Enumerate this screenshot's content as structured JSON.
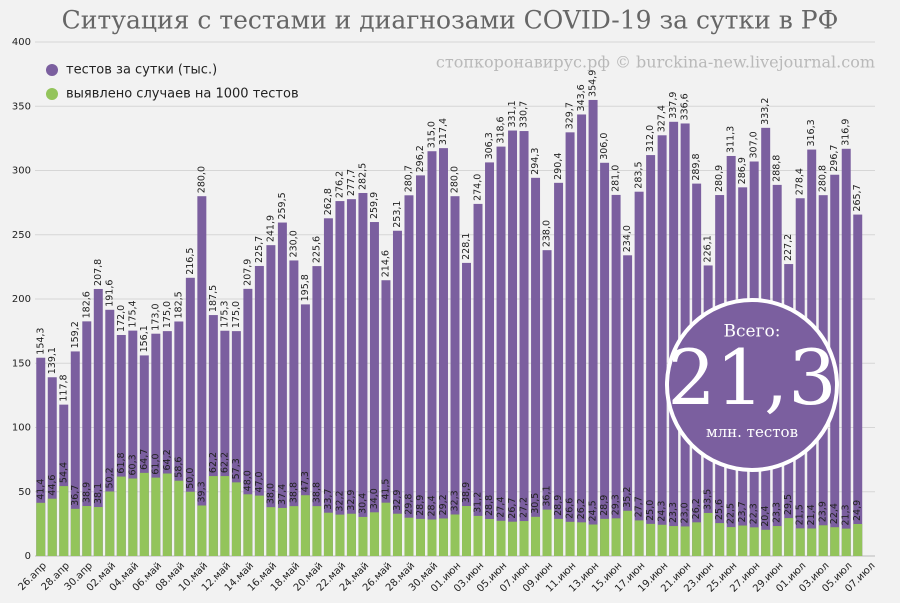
{
  "chart_data": {
    "type": "bar",
    "title": "Ситуация с тестами и диагнозами COVID-19 за сутки в РФ",
    "subtitle": "стопкоронавирус.рф © burckina-new.livejournal.com",
    "annotations": [
      "Всего:",
      "21,3",
      "млн. тестов"
    ],
    "categories": [
      "26.апр",
      null,
      "28.апр",
      null,
      "30.апр",
      null,
      "02.май",
      null,
      "04.май",
      null,
      "06.май",
      null,
      "08.май",
      null,
      "10.май",
      null,
      "12.май",
      null,
      "14.май",
      null,
      "16.май",
      null,
      "18.май",
      null,
      "20.май",
      null,
      "22.май",
      null,
      "24.май",
      null,
      "26.май",
      null,
      "28.май",
      null,
      "30.май",
      null,
      "01.июн",
      null,
      "03.июн",
      null,
      "05.июн",
      null,
      "07.июн",
      null,
      "09.июн",
      null,
      "11.июн",
      null,
      "13.июн",
      null,
      "15.июн",
      null,
      "17.июн",
      null,
      "19.июн",
      null,
      "21.июн",
      null,
      "23.июн",
      null,
      "25.июн",
      null,
      "27.июн",
      null,
      "29.июн",
      null,
      "01.июл",
      null,
      "03.июл",
      null,
      "05.июл",
      null,
      "07.июл"
    ],
    "series": [
      {
        "name": "тестов за сутки (тыс.)",
        "color": "#7b5f9f",
        "values": [
          154.3,
          139.1,
          117.8,
          159.2,
          182.6,
          207.8,
          191.6,
          172.0,
          175.4,
          156.1,
          173.0,
          175.0,
          182.5,
          216.5,
          280.0,
          187.5,
          175.3,
          175.0,
          207.9,
          225.7,
          241.9,
          259.5,
          230.0,
          195.8,
          225.6,
          262.8,
          276.2,
          277.7,
          282.5,
          259.9,
          214.6,
          253.1,
          280.7,
          296.2,
          315.0,
          317.4,
          280.0,
          228.1,
          274.0,
          306.3,
          318.6,
          331.1,
          330.7,
          294.3,
          238.0,
          290.4,
          329.7,
          343.6,
          354.9,
          306.0,
          281.0,
          234.0,
          283.5,
          312.0,
          327.4,
          337.9,
          336.6,
          289.8,
          226.1,
          280.9,
          311.3,
          286.9,
          307.0,
          333.2,
          288.8,
          227.2,
          278.4,
          316.3,
          280.8,
          296.7,
          316.9,
          265.7,
          null
        ],
        "value_labels": [
          "154,3",
          "139,1",
          "117,8",
          "159,2",
          "182,6",
          "207,8",
          "191,6",
          "172,0",
          "175,4",
          "156,1",
          "173,0",
          "175,0",
          "182,5",
          "216,5",
          "280,0",
          "187,5",
          "175,3",
          "175,0",
          "207,9",
          "225,7",
          "241,9",
          "259,5",
          "230,0",
          "195,8",
          "225,6",
          "262,8",
          "276,2",
          "277,7",
          "282,5",
          "259,9",
          "214,6",
          "253,1",
          "280,7",
          "296,2",
          "315,0",
          "317,4",
          "280,0",
          "228,1",
          "274,0",
          "306,3",
          "318,6",
          "331,1",
          "330,7",
          "294,3",
          "238,0",
          "290,4",
          "329,7",
          "343,6",
          "354,9",
          "306,0",
          "281,0",
          "234,0",
          "283,5",
          "312,0",
          "327,4",
          "337,9",
          "336,6",
          "289,8",
          "226,1",
          "280,9",
          "311,3",
          "286,9",
          "307,0",
          "333,2",
          "288,8",
          "227,2",
          "278,4",
          "316,3",
          "280,8",
          "296,7",
          "316,9",
          "265,7",
          null
        ]
      },
      {
        "name": "выявлено случаев на 1000 тестов",
        "color": "#93c45b",
        "values": [
          41.4,
          44.6,
          54.4,
          36.7,
          38.9,
          38.1,
          50.2,
          61.8,
          60.3,
          64.7,
          61.0,
          64.2,
          58.6,
          50.0,
          39.3,
          62.2,
          62.2,
          57.3,
          48.0,
          47.0,
          38.0,
          37.4,
          38.8,
          47.3,
          38.8,
          33.7,
          32.2,
          32.9,
          30.4,
          34.0,
          41.5,
          32.9,
          29.8,
          28.9,
          28.4,
          29.2,
          32.3,
          38.9,
          31.2,
          28.8,
          27.4,
          26.7,
          27.2,
          30.5,
          36.1,
          28.9,
          26.6,
          26.2,
          24.5,
          28.9,
          29.3,
          35.2,
          27.7,
          25.0,
          24.3,
          23.3,
          23.0,
          26.2,
          33.5,
          25.6,
          22.5,
          23.7,
          22.3,
          20.4,
          23.3,
          29.5,
          21.5,
          21.4,
          23.9,
          22.4,
          21.3,
          24.9,
          null
        ],
        "value_labels": [
          "41,4",
          "44,6",
          "54,4",
          "36,7",
          "38,9",
          "38,1",
          "50,2",
          "61,8",
          "60,3",
          "64,7",
          "61,0",
          "64,2",
          "58,6",
          "50,0",
          "39,3",
          "62,2",
          "62,2",
          "57,3",
          "48,0",
          "47,0",
          "38,0",
          "37,4",
          "38,8",
          "47,3",
          "38,8",
          "33,7",
          "32,2",
          "32,9",
          "30,4",
          "34,0",
          "41,5",
          "32,9",
          "29,8",
          "28,9",
          "28,4",
          "29,2",
          "32,3",
          "38,9",
          "31,2",
          "28,8",
          "27,4",
          "26,7",
          "27,2",
          "30,5",
          "36,1",
          "28,9",
          "26,6",
          "26,2",
          "24,5",
          "28,9",
          "29,3",
          "35,2",
          "27,7",
          "25,0",
          "24,3",
          "23,3",
          "23,0",
          "26,2",
          "33,5",
          "25,6",
          "22,5",
          "23,7",
          "22,3",
          "20,4",
          "23,3",
          "29,5",
          "21,5",
          "21,4",
          "23,9",
          "22,4",
          "21,3",
          "24,9",
          null
        ]
      }
    ],
    "ylim": [
      0,
      400
    ],
    "yticks": [
      0,
      50,
      100,
      150,
      200,
      250,
      300,
      350,
      400
    ],
    "grid": true,
    "legend": "top-left"
  }
}
